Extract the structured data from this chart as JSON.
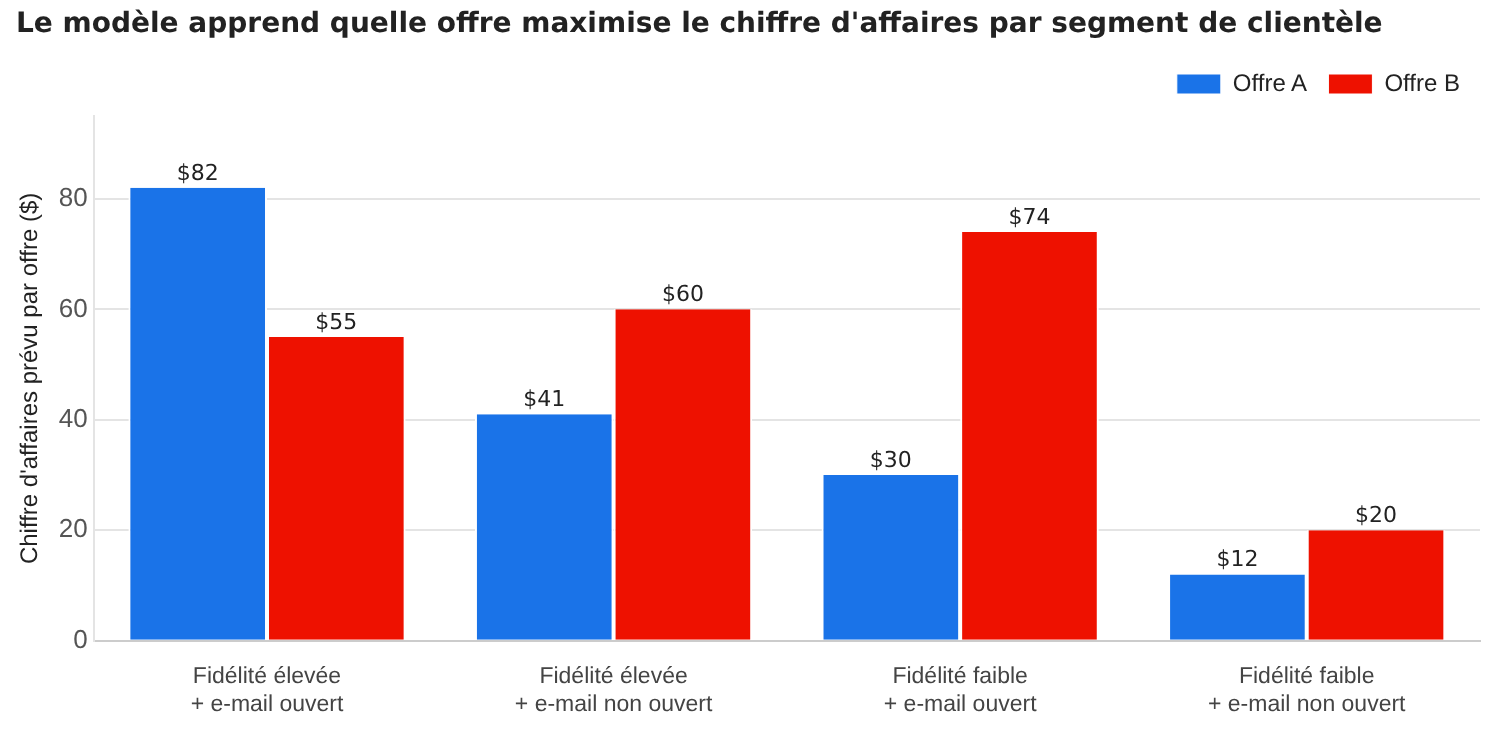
{
  "chart_data": {
    "type": "bar",
    "title": "Le modèle apprend quelle offre maximise le chiffre d'affaires par segment de clientèle",
    "ylabel": "Chiffre d'affaires prévu par offre ($)",
    "categories": [
      "Fidélité élevée\n+ e-mail ouvert",
      "Fidélité élevée\n+ e-mail non ouvert",
      "Fidélité faible\n+ e-mail ouvert",
      "Fidélité faible\n+ e-mail non ouvert"
    ],
    "series": [
      {
        "name": "Offre A",
        "color": "#1a73e8",
        "values": [
          82,
          41,
          30,
          12
        ],
        "value_labels": [
          "$82",
          "$41",
          "$30",
          "$12"
        ]
      },
      {
        "name": "Offre B",
        "color": "#ee1100",
        "values": [
          55,
          60,
          74,
          20
        ],
        "value_labels": [
          "$55",
          "$60",
          "$74",
          "$20"
        ]
      }
    ],
    "ylim": [
      0,
      95
    ],
    "yticks": [
      0,
      20,
      40,
      60,
      80
    ],
    "grid": "y",
    "legend": "top right"
  }
}
